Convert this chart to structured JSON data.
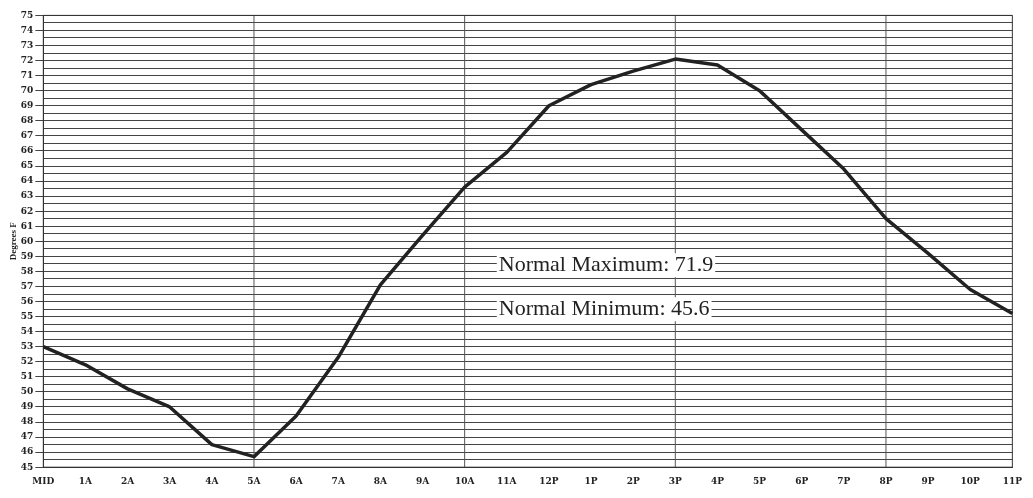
{
  "chart_data": {
    "type": "line",
    "ylabel": "Degrees F",
    "categories": [
      "MID",
      "1A",
      "2A",
      "3A",
      "4A",
      "5A",
      "6A",
      "7A",
      "8A",
      "9A",
      "10A",
      "11A",
      "12P",
      "1P",
      "2P",
      "3P",
      "4P",
      "5P",
      "6P",
      "7P",
      "8P",
      "9P",
      "10P",
      "11P"
    ],
    "series": [
      {
        "color": "#222222",
        "values": [
          53,
          51.8,
          50.2,
          49,
          46.5,
          45.7,
          48.4,
          52.3,
          57.1,
          60.4,
          63.6,
          65.9,
          69,
          70.4,
          71.3,
          72.1,
          71.7,
          70,
          67.4,
          64.8,
          61.5,
          59.2,
          56.8,
          55.2
        ]
      }
    ],
    "ylim": [
      45,
      75
    ],
    "yticks": [
      45,
      {
        "value": 45.5,
        "label": null
      },
      46,
      {
        "value": 46.5,
        "label": null
      },
      47,
      {
        "value": 47.5,
        "label": null
      },
      48,
      {
        "value": 48.5,
        "label": null
      },
      49,
      {
        "value": 49.5,
        "label": null
      },
      50,
      {
        "value": 50.5,
        "label": null
      },
      51,
      {
        "value": 51.5,
        "label": null
      },
      52,
      {
        "value": 52.5,
        "label": null
      },
      53,
      {
        "value": 53.5,
        "label": null
      },
      54,
      {
        "value": 54.5,
        "label": null
      },
      55,
      {
        "value": 55.5,
        "label": null
      },
      56,
      {
        "value": 56.5,
        "label": null
      },
      57,
      {
        "value": 57.5,
        "label": null
      },
      58,
      {
        "value": 58.5,
        "label": null
      },
      59,
      {
        "value": 59.5,
        "label": null
      },
      60,
      {
        "value": 60.5,
        "label": null
      },
      61,
      {
        "value": 61.5,
        "label": null
      },
      62,
      {
        "value": 62.5,
        "label": null
      },
      63,
      {
        "value": 63.5,
        "label": null
      },
      64,
      {
        "value": 64.5,
        "label": null
      },
      65,
      {
        "value": 65.5,
        "label": null
      },
      66,
      {
        "value": 66.5,
        "label": null
      },
      67,
      {
        "value": 67.5,
        "label": null
      },
      68,
      {
        "value": 68.5,
        "label": null
      },
      69,
      {
        "value": 69.5,
        "label": null
      },
      70,
      {
        "value": 70.5,
        "label": null
      },
      71,
      {
        "value": 71.5,
        "label": null
      },
      72,
      {
        "value": 72.5,
        "label": null
      },
      73,
      {
        "value": 73.5,
        "label": null
      },
      74,
      {
        "value": 74.5,
        "label": null
      },
      75
    ],
    "grid": "y",
    "ref_lines": [
      {
        "axis": "x",
        "value": "5A"
      },
      {
        "axis": "x",
        "value": "10A"
      },
      {
        "axis": "x",
        "value": "3P"
      },
      {
        "axis": "x",
        "value": "8P"
      }
    ],
    "marker": "none",
    "line_style": "solid",
    "legend": false,
    "annotations": [
      "Normal Maximum: 71.9",
      "Normal Minimum: 45.6"
    ]
  }
}
